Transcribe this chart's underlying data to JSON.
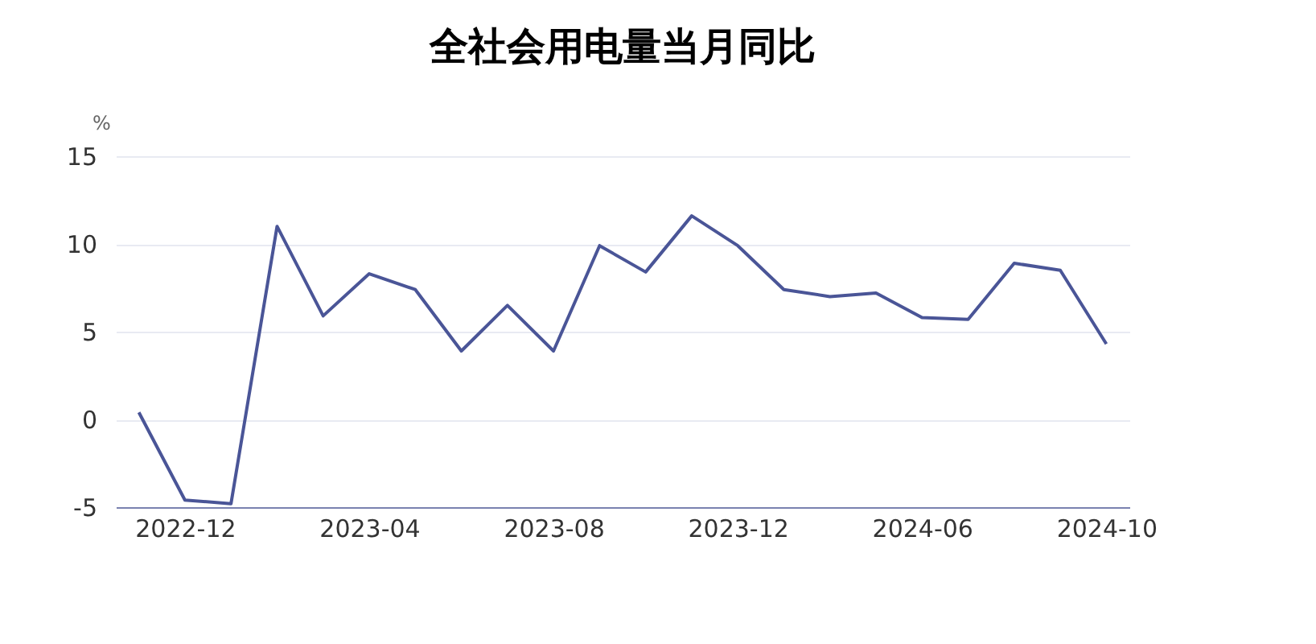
{
  "chart_data": {
    "type": "line",
    "title": "全社会用电量当月同比",
    "ylabel": "%",
    "categories": [
      null,
      "2022-12",
      null,
      null,
      null,
      "2023-04",
      null,
      null,
      null,
      "2023-08",
      null,
      null,
      null,
      "2023-12",
      null,
      null,
      null,
      "2024-06",
      null,
      null,
      null,
      "2024-10"
    ],
    "series": [
      {
        "color": "#4a5597",
        "values": [
          0.4,
          -4.6,
          -4.8,
          11.0,
          5.9,
          8.3,
          7.4,
          3.9,
          6.5,
          3.9,
          9.9,
          8.4,
          11.6,
          9.9,
          7.4,
          7.0,
          7.2,
          5.8,
          5.7,
          8.9,
          8.5,
          4.3
        ]
      }
    ],
    "ylim": [
      -5,
      15
    ],
    "yticks": [
      -5,
      0,
      5,
      10,
      15
    ],
    "grid": "y",
    "legend": false,
    "marker": "none",
    "line_style": "solid"
  }
}
